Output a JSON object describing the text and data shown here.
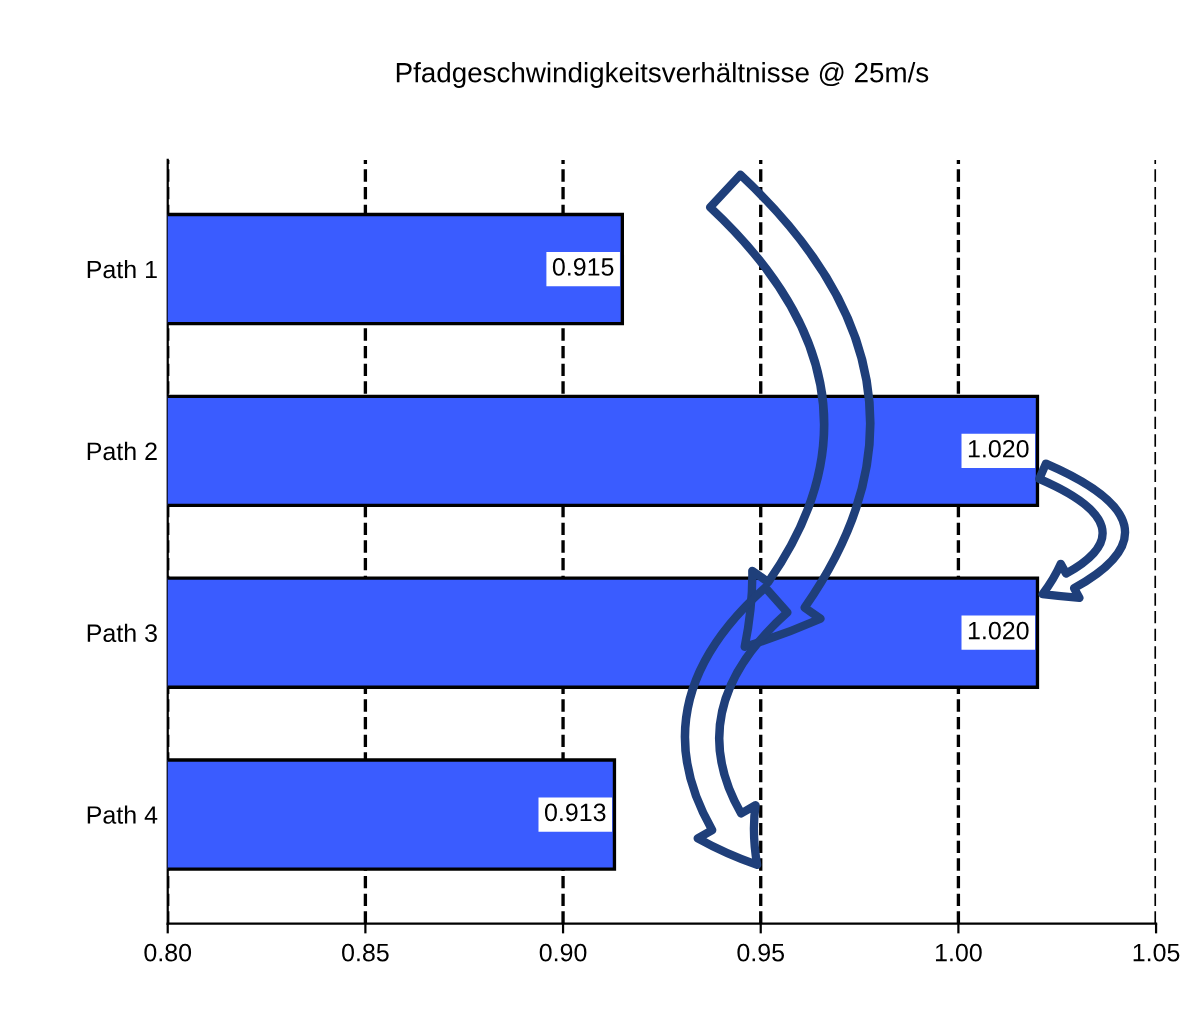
{
  "chart_data": {
    "type": "bar",
    "orientation": "horizontal",
    "title": "Pfadgeschwindigkeitsverhältnisse @ 25m/s",
    "categories": [
      "Path 1",
      "Path 2",
      "Path 3",
      "Path 4"
    ],
    "values": [
      0.915,
      1.02,
      1.02,
      0.913
    ],
    "value_labels": [
      "0.915",
      "1.020",
      "1.020",
      "0.913"
    ],
    "color": "#3a5cff",
    "xlim": [
      0.8,
      1.05
    ],
    "xticks": [
      {
        "value": 0.8,
        "label": "0.80"
      },
      {
        "value": 0.85,
        "label": "0.85"
      },
      {
        "value": 0.9,
        "label": "0.90"
      },
      {
        "value": 0.95,
        "label": "0.95"
      },
      {
        "value": 1.0,
        "label": "1.00"
      },
      {
        "value": 1.05,
        "label": "1.05"
      }
    ],
    "grid": "x",
    "line_style": "dashed",
    "legend": false
  }
}
